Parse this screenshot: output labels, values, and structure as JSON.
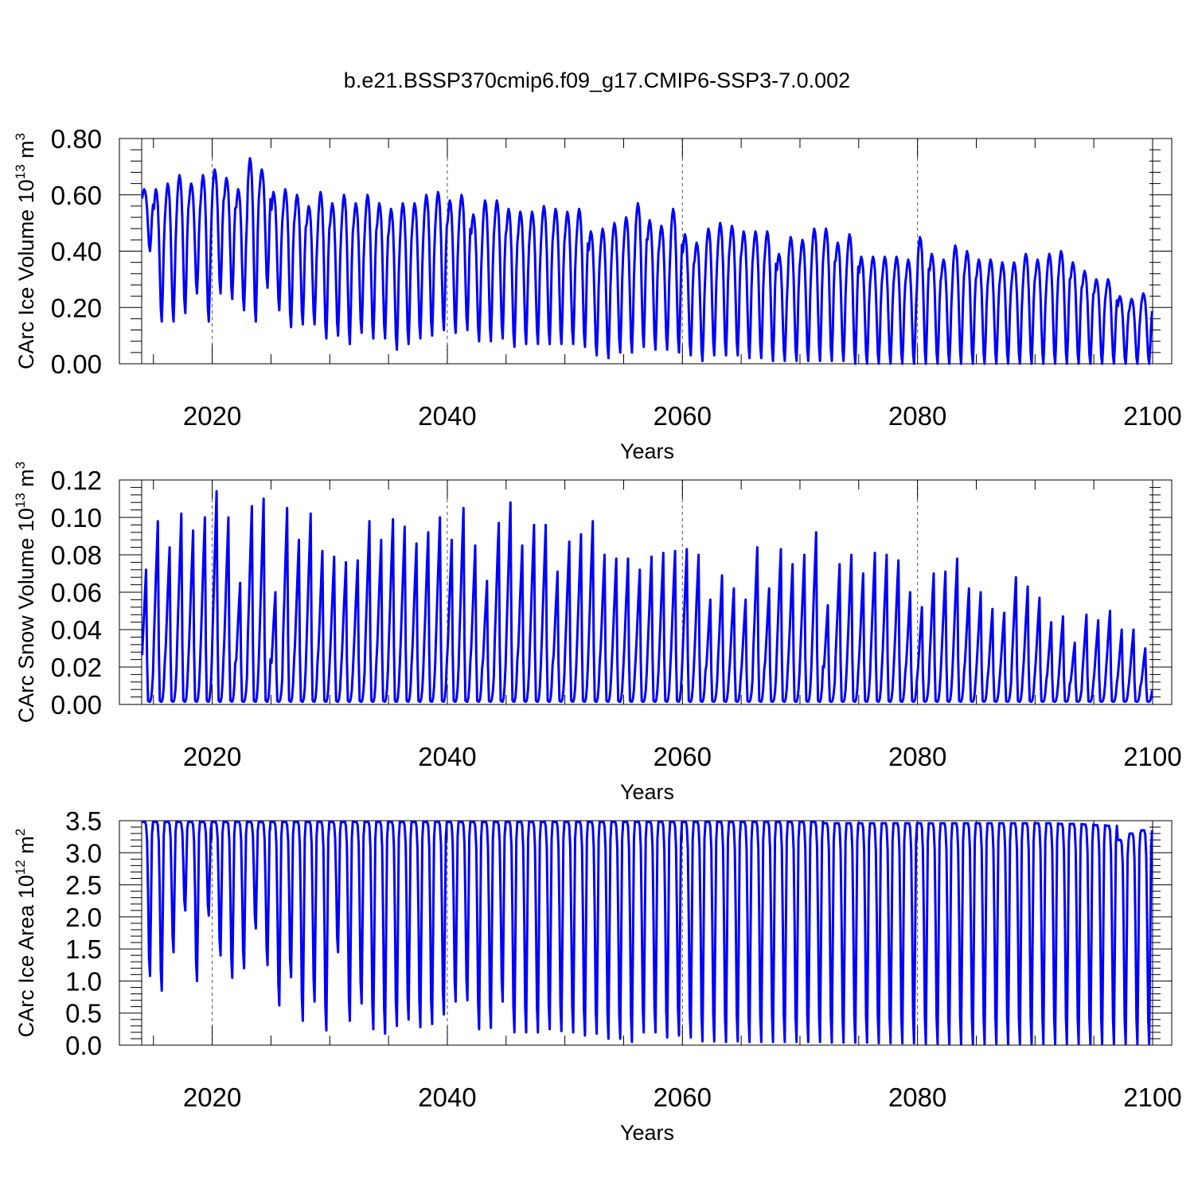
{
  "title": "b.e21.BSSP370cmip6.f09_g17.CMIP6-SSP3-7.0.002",
  "colors": {
    "line": "#0000ff",
    "axis": "#000000",
    "grid": "#555555"
  },
  "chart_data": [
    {
      "type": "line",
      "xlabel": "Years",
      "ylabel": {
        "text": "CArc Ice Volume 10",
        "exp": "13",
        "unit": " m",
        "unit_exp": "3"
      },
      "xlim": [
        2014,
        2100
      ],
      "ylim": [
        0,
        0.8
      ],
      "xticks": [
        "2020",
        "2040",
        "2060",
        "2080",
        "2100"
      ],
      "yticks": [
        "0.00",
        "0.20",
        "0.40",
        "0.60",
        "0.80"
      ],
      "ytick_values": [
        0,
        0.2,
        0.4,
        0.6,
        0.8
      ],
      "grid": "dashed vertical lines at labeled years",
      "series": [
        {
          "sampling": "monthly; annual maxima and minima listed for years 2014-2099",
          "annual_max": [
            0.62,
            0.62,
            0.64,
            0.67,
            0.64,
            0.67,
            0.69,
            0.66,
            0.62,
            0.73,
            0.69,
            0.61,
            0.62,
            0.6,
            0.56,
            0.61,
            0.57,
            0.6,
            0.57,
            0.6,
            0.57,
            0.55,
            0.57,
            0.57,
            0.6,
            0.61,
            0.58,
            0.6,
            0.53,
            0.58,
            0.58,
            0.55,
            0.54,
            0.54,
            0.56,
            0.55,
            0.54,
            0.55,
            0.47,
            0.48,
            0.5,
            0.52,
            0.57,
            0.51,
            0.49,
            0.55,
            0.46,
            0.43,
            0.48,
            0.5,
            0.49,
            0.47,
            0.47,
            0.47,
            0.39,
            0.45,
            0.44,
            0.48,
            0.48,
            0.43,
            0.46,
            0.38,
            0.38,
            0.38,
            0.38,
            0.37,
            0.45,
            0.39,
            0.37,
            0.42,
            0.4,
            0.37,
            0.37,
            0.36,
            0.36,
            0.39,
            0.37,
            0.39,
            0.4,
            0.36,
            0.33,
            0.3,
            0.3,
            0.24,
            0.23,
            0.25
          ],
          "annual_min": [
            0.4,
            0.15,
            0.15,
            0.18,
            0.25,
            0.15,
            0.25,
            0.23,
            0.19,
            0.15,
            0.27,
            0.19,
            0.13,
            0.14,
            0.14,
            0.09,
            0.1,
            0.07,
            0.11,
            0.09,
            0.09,
            0.05,
            0.07,
            0.09,
            0.1,
            0.12,
            0.11,
            0.12,
            0.08,
            0.08,
            0.09,
            0.06,
            0.07,
            0.07,
            0.07,
            0.07,
            0.07,
            0.06,
            0.03,
            0.02,
            0.04,
            0.04,
            0.06,
            0.05,
            0.05,
            0.04,
            0.03,
            0.01,
            0.03,
            0.03,
            0.03,
            0.02,
            0.02,
            0.01,
            0.01,
            0.01,
            0.01,
            0.01,
            0.01,
            0.01,
            0.0,
            0.0,
            0.0,
            0.0,
            0.0,
            0.0,
            0.0,
            0.0,
            0.0,
            0.0,
            0.0,
            0.0,
            0.0,
            0.0,
            0.0,
            0.0,
            0.0,
            0.0,
            0.0,
            0.0,
            0.0,
            0.0,
            0.0,
            0.0,
            0.0,
            0.0
          ]
        }
      ]
    },
    {
      "type": "line",
      "xlabel": "Years",
      "ylabel": {
        "text": "CArc Snow Volume 10",
        "exp": "13",
        "unit": " m",
        "unit_exp": "3"
      },
      "xlim": [
        2014,
        2100
      ],
      "ylim": [
        0,
        0.12
      ],
      "xticks": [
        "2020",
        "2040",
        "2060",
        "2080",
        "2100"
      ],
      "yticks": [
        "0.00",
        "0.02",
        "0.04",
        "0.06",
        "0.08",
        "0.10",
        "0.12"
      ],
      "ytick_values": [
        0,
        0.02,
        0.04,
        0.06,
        0.08,
        0.1,
        0.12
      ],
      "grid": "dashed vertical lines at labeled years",
      "series": [
        {
          "sampling": "monthly; annual maxima listed for years 2014-2099, minima near zero",
          "annual_max": [
            0.072,
            0.098,
            0.084,
            0.102,
            0.093,
            0.1,
            0.114,
            0.1,
            0.065,
            0.106,
            0.11,
            0.06,
            0.105,
            0.088,
            0.102,
            0.082,
            0.079,
            0.076,
            0.077,
            0.098,
            0.088,
            0.099,
            0.095,
            0.086,
            0.092,
            0.1,
            0.088,
            0.105,
            0.085,
            0.066,
            0.097,
            0.108,
            0.085,
            0.096,
            0.096,
            0.071,
            0.087,
            0.091,
            0.098,
            0.08,
            0.078,
            0.078,
            0.072,
            0.079,
            0.081,
            0.082,
            0.083,
            0.08,
            0.056,
            0.069,
            0.062,
            0.056,
            0.084,
            0.062,
            0.083,
            0.075,
            0.08,
            0.092,
            0.053,
            0.075,
            0.08,
            0.07,
            0.081,
            0.08,
            0.077,
            0.06,
            0.052,
            0.07,
            0.071,
            0.078,
            0.062,
            0.06,
            0.051,
            0.049,
            0.068,
            0.063,
            0.057,
            0.044,
            0.047,
            0.033,
            0.048,
            0.045,
            0.05,
            0.04,
            0.04,
            0.03
          ]
        }
      ]
    },
    {
      "type": "line",
      "xlabel": "Years",
      "ylabel": {
        "text": "CArc Ice Area 10",
        "exp": "12",
        "unit": " m",
        "unit_exp": "2"
      },
      "xlim": [
        2014,
        2100
      ],
      "ylim": [
        0,
        3.5
      ],
      "xticks": [
        "2020",
        "2040",
        "2060",
        "2080",
        "2100"
      ],
      "yticks": [
        "0.0",
        "0.5",
        "1.0",
        "1.5",
        "2.0",
        "2.5",
        "3.0",
        "3.5"
      ],
      "ytick_values": [
        0,
        0.5,
        1.0,
        1.5,
        2.0,
        2.5,
        3.0,
        3.5
      ],
      "grid": "dashed vertical lines at labeled years",
      "series": [
        {
          "sampling": "monthly; annual maxima and minima listed for years 2014-2099",
          "annual_max": [
            3.48,
            3.48,
            3.48,
            3.48,
            3.48,
            3.48,
            3.48,
            3.48,
            3.48,
            3.48,
            3.48,
            3.48,
            3.48,
            3.48,
            3.48,
            3.48,
            3.48,
            3.48,
            3.48,
            3.48,
            3.48,
            3.48,
            3.48,
            3.48,
            3.48,
            3.48,
            3.48,
            3.48,
            3.48,
            3.48,
            3.48,
            3.48,
            3.48,
            3.48,
            3.48,
            3.48,
            3.48,
            3.48,
            3.48,
            3.48,
            3.48,
            3.48,
            3.48,
            3.48,
            3.48,
            3.48,
            3.48,
            3.48,
            3.48,
            3.48,
            3.48,
            3.48,
            3.48,
            3.48,
            3.48,
            3.48,
            3.48,
            3.48,
            3.46,
            3.46,
            3.46,
            3.46,
            3.46,
            3.46,
            3.46,
            3.46,
            3.46,
            3.46,
            3.46,
            3.46,
            3.46,
            3.46,
            3.46,
            3.46,
            3.46,
            3.46,
            3.46,
            3.46,
            3.45,
            3.45,
            3.44,
            3.43,
            3.42,
            3.2,
            3.3,
            3.35
          ],
          "annual_min": [
            1.08,
            0.85,
            1.45,
            2.1,
            1.0,
            2.02,
            1.4,
            1.05,
            1.2,
            1.82,
            1.25,
            0.62,
            1.06,
            0.38,
            0.68,
            0.23,
            1.45,
            0.38,
            0.65,
            0.25,
            0.18,
            0.3,
            0.4,
            0.28,
            0.33,
            0.48,
            0.68,
            0.7,
            0.25,
            0.27,
            0.68,
            0.2,
            0.2,
            0.2,
            0.25,
            0.22,
            0.2,
            0.15,
            0.18,
            0.1,
            0.1,
            0.05,
            0.2,
            0.2,
            0.12,
            0.15,
            0.12,
            0.06,
            0.06,
            0.05,
            0.06,
            0.05,
            0.05,
            0.05,
            0.05,
            0.05,
            0.05,
            0.05,
            0.04,
            0.04,
            0.04,
            0.04,
            0.03,
            0.03,
            0.03,
            0.03,
            0.02,
            0.02,
            0.02,
            0.02,
            0.02,
            0.02,
            0.02,
            0.02,
            0.02,
            0.02,
            0.02,
            0.02,
            0.02,
            0.02,
            0.02,
            0.02,
            0.02,
            0.02,
            0.02,
            0.02
          ]
        }
      ]
    }
  ]
}
